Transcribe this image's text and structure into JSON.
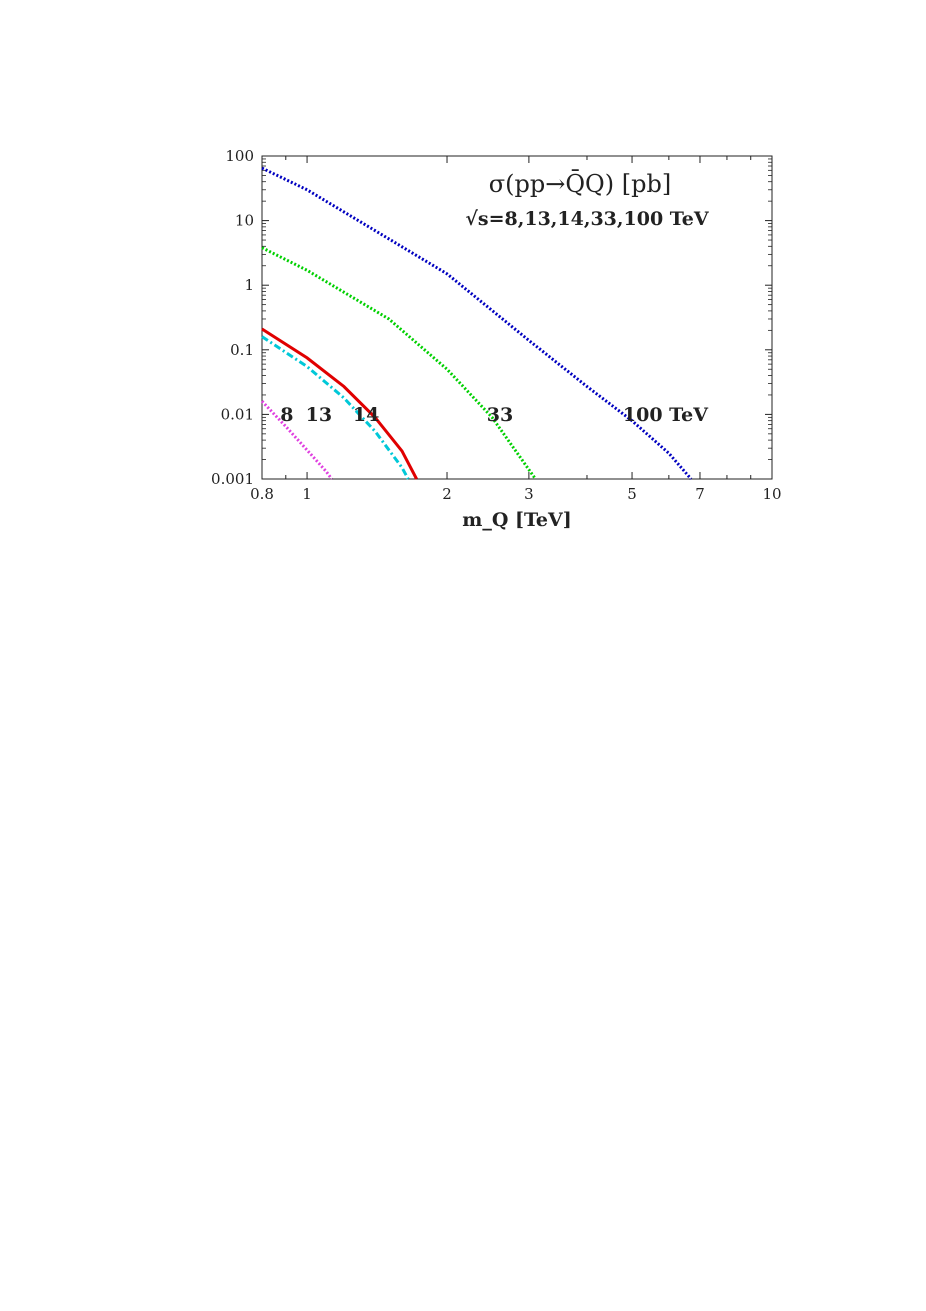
{
  "chart_data": {
    "type": "line",
    "title": "σ(pp→Q̄Q) [pb]",
    "subtitle": "√s=8,13,14,33,100 TeV",
    "xlabel": "m_Q [TeV]",
    "ylabel": "",
    "xscale": "log",
    "yscale": "log",
    "xlim": [
      0.8,
      10
    ],
    "ylim": [
      0.001,
      100
    ],
    "xticks": [
      0.8,
      1,
      2,
      3,
      5,
      7,
      10
    ],
    "xtick_labels": [
      "0.8",
      "1",
      "2",
      "3",
      "5",
      "7",
      "10"
    ],
    "yticks": [
      100,
      10,
      1,
      0.1,
      0.01,
      0.001
    ],
    "ytick_labels": [
      "100",
      "10",
      "1",
      "0.1",
      "0.01",
      "0.001"
    ],
    "grid": false,
    "series": [
      {
        "label": "8",
        "color": "#e040e0",
        "style": "dotted",
        "x": [
          0.8,
          0.9,
          1.0,
          1.1,
          1.13
        ],
        "y": [
          0.016,
          0.0065,
          0.0028,
          0.0013,
          0.001
        ]
      },
      {
        "label": "13",
        "color": "#00c8d8",
        "style": "dashdot",
        "x": [
          0.8,
          1.0,
          1.2,
          1.4,
          1.6,
          1.65
        ],
        "y": [
          0.16,
          0.055,
          0.018,
          0.0055,
          0.0015,
          0.001
        ]
      },
      {
        "label": "14",
        "color": "#e00000",
        "style": "solid",
        "x": [
          0.8,
          1.0,
          1.2,
          1.4,
          1.6,
          1.72
        ],
        "y": [
          0.21,
          0.075,
          0.027,
          0.009,
          0.0027,
          0.001
        ]
      },
      {
        "label": "33",
        "color": "#00d000",
        "style": "dotted",
        "x": [
          0.8,
          1.0,
          1.5,
          2.0,
          2.5,
          3.1
        ],
        "y": [
          3.8,
          1.7,
          0.3,
          0.05,
          0.009,
          0.001
        ]
      },
      {
        "label": "100 TeV",
        "color": "#0000c0",
        "style": "dotted",
        "x": [
          0.8,
          1.0,
          2.0,
          3.0,
          4.0,
          5.0,
          6.0,
          6.7
        ],
        "y": [
          65,
          30,
          1.5,
          0.14,
          0.027,
          0.008,
          0.0025,
          0.001
        ]
      }
    ],
    "annotations": [
      {
        "text": "8",
        "x": 0.905,
        "y": 0.0102
      },
      {
        "text": "13",
        "x": 1.06,
        "y": 0.0102
      },
      {
        "text": "14",
        "x": 1.34,
        "y": 0.0102
      },
      {
        "text": "33",
        "x": 2.6,
        "y": 0.0102
      },
      {
        "text": "100 TeV",
        "x": 5.9,
        "y": 0.0102
      }
    ]
  }
}
